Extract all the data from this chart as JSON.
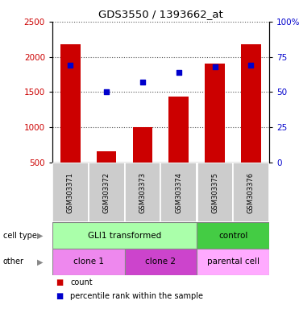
{
  "title": "GDS3550 / 1393662_at",
  "samples": [
    "GSM303371",
    "GSM303372",
    "GSM303373",
    "GSM303374",
    "GSM303375",
    "GSM303376"
  ],
  "counts": [
    2175,
    650,
    1000,
    1430,
    1900,
    2175
  ],
  "percentile_ranks": [
    69,
    50,
    57,
    64,
    68,
    69
  ],
  "ylim_left": [
    500,
    2500
  ],
  "ylim_right": [
    0,
    100
  ],
  "yticks_left": [
    500,
    1000,
    1500,
    2000,
    2500
  ],
  "yticks_right": [
    0,
    25,
    50,
    75,
    100
  ],
  "bar_color": "#cc0000",
  "dot_color": "#0000cc",
  "bar_width": 0.55,
  "grid_color": "#555555",
  "tick_label_color_left": "#cc0000",
  "tick_label_color_right": "#0000cc",
  "background_color": "#ffffff",
  "cell_type_gli_color": "#aaffaa",
  "cell_type_ctrl_color": "#44cc44",
  "other_clone1_color": "#ee88ee",
  "other_clone2_color": "#cc44cc",
  "other_parental_color": "#ffaaff",
  "sample_box_color": "#cccccc"
}
